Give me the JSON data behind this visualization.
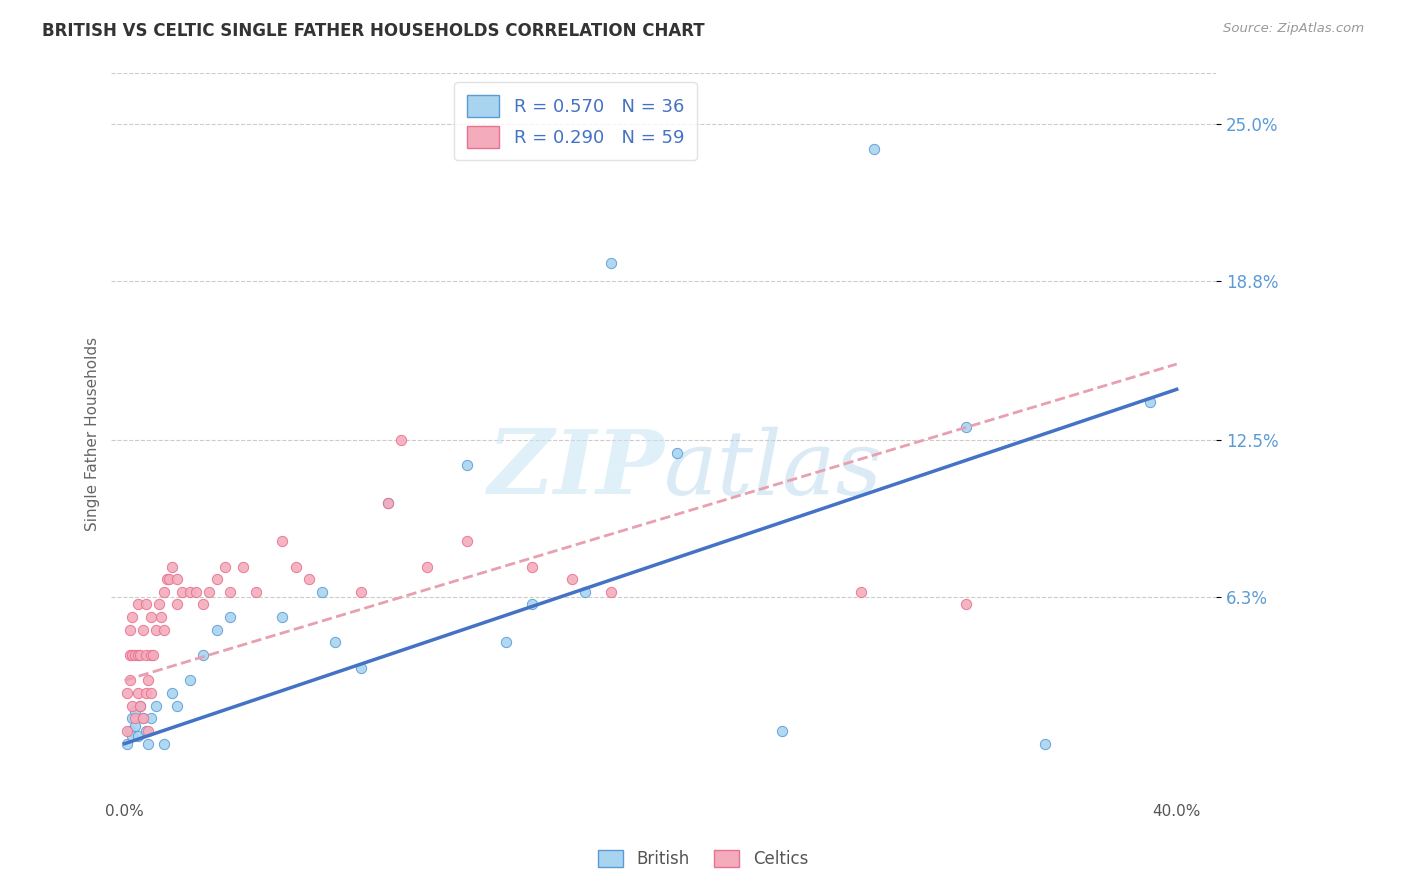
{
  "title": "BRITISH VS CELTIC SINGLE FATHER HOUSEHOLDS CORRELATION CHART",
  "source": "Source: ZipAtlas.com",
  "ylabel": "Single Father Households",
  "ytick_values": [
    0.063,
    0.125,
    0.188,
    0.25
  ],
  "ytick_labels": [
    "6.3%",
    "12.5%",
    "18.8%",
    "25.0%"
  ],
  "xlim": [
    0.0,
    0.4
  ],
  "ylim": [
    0.0,
    0.27
  ],
  "british_R": 0.57,
  "british_N": 36,
  "celtic_R": 0.29,
  "celtic_N": 59,
  "british_color": "#A8D4F0",
  "british_edge_color": "#5B9BD5",
  "celtic_color": "#F4ACBC",
  "celtic_edge_color": "#E87090",
  "british_line_color": "#4472C4",
  "celtic_line_color": "#E8A0B0",
  "grid_color": "#CCCCCC",
  "british_x": [
    0.001,
    0.002,
    0.003,
    0.003,
    0.004,
    0.004,
    0.005,
    0.006,
    0.007,
    0.008,
    0.009,
    0.01,
    0.012,
    0.015,
    0.018,
    0.02,
    0.025,
    0.03,
    0.035,
    0.04,
    0.06,
    0.075,
    0.08,
    0.09,
    0.1,
    0.13,
    0.145,
    0.155,
    0.175,
    0.185,
    0.21,
    0.25,
    0.285,
    0.32,
    0.35,
    0.39
  ],
  "british_y": [
    0.005,
    0.01,
    0.008,
    0.015,
    0.012,
    0.018,
    0.008,
    0.02,
    0.015,
    0.01,
    0.005,
    0.015,
    0.02,
    0.005,
    0.025,
    0.02,
    0.03,
    0.04,
    0.05,
    0.055,
    0.055,
    0.065,
    0.045,
    0.035,
    0.1,
    0.115,
    0.045,
    0.06,
    0.065,
    0.195,
    0.12,
    0.01,
    0.24,
    0.13,
    0.005,
    0.14
  ],
  "celtic_x": [
    0.001,
    0.001,
    0.002,
    0.002,
    0.002,
    0.003,
    0.003,
    0.003,
    0.004,
    0.004,
    0.005,
    0.005,
    0.005,
    0.006,
    0.006,
    0.007,
    0.007,
    0.008,
    0.008,
    0.008,
    0.009,
    0.009,
    0.01,
    0.01,
    0.01,
    0.011,
    0.012,
    0.013,
    0.014,
    0.015,
    0.015,
    0.016,
    0.017,
    0.018,
    0.02,
    0.02,
    0.022,
    0.025,
    0.027,
    0.03,
    0.032,
    0.035,
    0.038,
    0.04,
    0.045,
    0.05,
    0.06,
    0.065,
    0.07,
    0.09,
    0.1,
    0.105,
    0.115,
    0.13,
    0.155,
    0.17,
    0.185,
    0.28,
    0.32
  ],
  "celtic_y": [
    0.01,
    0.025,
    0.03,
    0.04,
    0.05,
    0.02,
    0.04,
    0.055,
    0.015,
    0.04,
    0.025,
    0.04,
    0.06,
    0.02,
    0.04,
    0.015,
    0.05,
    0.025,
    0.04,
    0.06,
    0.01,
    0.03,
    0.025,
    0.04,
    0.055,
    0.04,
    0.05,
    0.06,
    0.055,
    0.05,
    0.065,
    0.07,
    0.07,
    0.075,
    0.06,
    0.07,
    0.065,
    0.065,
    0.065,
    0.06,
    0.065,
    0.07,
    0.075,
    0.065,
    0.075,
    0.065,
    0.085,
    0.075,
    0.07,
    0.065,
    0.1,
    0.125,
    0.075,
    0.085,
    0.075,
    0.07,
    0.065,
    0.065,
    0.06
  ]
}
